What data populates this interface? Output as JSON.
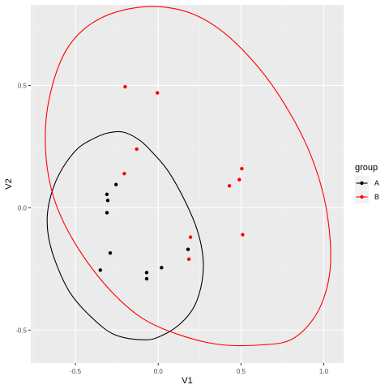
{
  "chart_data": {
    "type": "scatter",
    "xlabel": "V1",
    "ylabel": "V2",
    "xlim": [
      -0.77,
      1.12
    ],
    "ylim": [
      -0.635,
      0.83
    ],
    "x_ticks": [
      {
        "value": -0.5,
        "label": "-0.5"
      },
      {
        "value": 0.0,
        "label": "0.0"
      },
      {
        "value": 0.5,
        "label": "0.5"
      },
      {
        "value": 1.0,
        "label": "1.0"
      }
    ],
    "y_ticks": [
      {
        "value": -0.5,
        "label": "-0.5"
      },
      {
        "value": 0.0,
        "label": "0.0"
      },
      {
        "value": 0.5,
        "label": "0.5"
      }
    ],
    "grid": true,
    "legend": {
      "title": "group",
      "position": "right",
      "entries": [
        {
          "label": "A",
          "color": "#000000"
        },
        {
          "label": "B",
          "color": "#ff0000"
        }
      ]
    },
    "series": [
      {
        "name": "A",
        "color": "#000000",
        "points": [
          {
            "x": -0.31,
            "y": 0.055
          },
          {
            "x": -0.305,
            "y": 0.03
          },
          {
            "x": -0.255,
            "y": 0.095
          },
          {
            "x": -0.31,
            "y": -0.02
          },
          {
            "x": -0.29,
            "y": -0.185
          },
          {
            "x": -0.35,
            "y": -0.255
          },
          {
            "x": -0.07,
            "y": -0.265
          },
          {
            "x": -0.07,
            "y": -0.29
          },
          {
            "x": 0.02,
            "y": -0.245
          },
          {
            "x": 0.18,
            "y": -0.17
          }
        ],
        "ellipse": [
          [
            -0.08,
            -0.54
          ],
          [
            0.03,
            -0.52
          ],
          [
            0.14,
            -0.47
          ],
          [
            0.22,
            -0.4
          ],
          [
            0.265,
            -0.3
          ],
          [
            0.27,
            -0.2
          ],
          [
            0.235,
            -0.09
          ],
          [
            0.16,
            0.03
          ],
          [
            0.06,
            0.15
          ],
          [
            -0.04,
            0.23
          ],
          [
            -0.12,
            0.28
          ],
          [
            -0.215,
            0.31
          ],
          [
            -0.31,
            0.305
          ],
          [
            -0.4,
            0.28
          ],
          [
            -0.49,
            0.24
          ],
          [
            -0.58,
            0.16
          ],
          [
            -0.64,
            0.07
          ],
          [
            -0.67,
            -0.03
          ],
          [
            -0.66,
            -0.13
          ],
          [
            -0.61,
            -0.24
          ],
          [
            -0.53,
            -0.35
          ],
          [
            -0.4,
            -0.45
          ],
          [
            -0.26,
            -0.52
          ],
          [
            -0.08,
            -0.54
          ]
        ]
      },
      {
        "name": "B",
        "color": "#ff0000",
        "points": [
          {
            "x": -0.2,
            "y": 0.495
          },
          {
            "x": -0.005,
            "y": 0.47
          },
          {
            "x": -0.13,
            "y": 0.24
          },
          {
            "x": -0.205,
            "y": 0.14
          },
          {
            "x": 0.505,
            "y": 0.16
          },
          {
            "x": 0.49,
            "y": 0.115
          },
          {
            "x": 0.43,
            "y": 0.09
          },
          {
            "x": 0.195,
            "y": -0.12
          },
          {
            "x": 0.185,
            "y": -0.21
          },
          {
            "x": 0.51,
            "y": -0.11
          }
        ],
        "ellipse": [
          [
            0.64,
            -0.56
          ],
          [
            0.8,
            -0.54
          ],
          [
            0.92,
            -0.47
          ],
          [
            1.0,
            -0.37
          ],
          [
            1.04,
            -0.24
          ],
          [
            1.03,
            -0.07
          ],
          [
            0.98,
            0.1
          ],
          [
            0.88,
            0.28
          ],
          [
            0.72,
            0.47
          ],
          [
            0.56,
            0.61
          ],
          [
            0.39,
            0.72
          ],
          [
            0.22,
            0.79
          ],
          [
            0.05,
            0.82
          ],
          [
            -0.12,
            0.82
          ],
          [
            -0.3,
            0.79
          ],
          [
            -0.45,
            0.73
          ],
          [
            -0.56,
            0.64
          ],
          [
            -0.64,
            0.5
          ],
          [
            -0.68,
            0.34
          ],
          [
            -0.67,
            0.16
          ],
          [
            -0.61,
            0.0
          ],
          [
            -0.48,
            -0.17
          ],
          [
            -0.3,
            -0.33
          ],
          [
            -0.1,
            -0.45
          ],
          [
            0.13,
            -0.52
          ],
          [
            0.38,
            -0.56
          ],
          [
            0.64,
            -0.56
          ]
        ]
      }
    ]
  }
}
